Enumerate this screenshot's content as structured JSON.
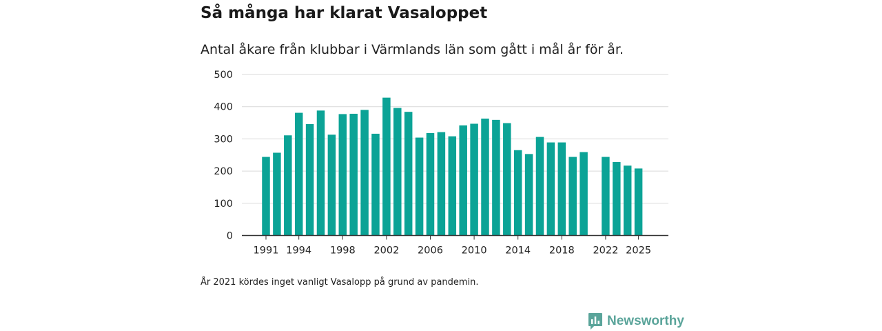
{
  "chart_data": {
    "type": "bar",
    "title": "Så många har klarat Vasaloppet",
    "subtitle": "Antal åkare från klubbar i Värmlands län som gått i mål år för år.",
    "xlabel": "",
    "ylabel": "",
    "ylim": [
      0,
      500
    ],
    "yticks": [
      0,
      100,
      200,
      300,
      400,
      500
    ],
    "xtick_labels": [
      "1991",
      "1994",
      "1998",
      "2002",
      "2006",
      "2010",
      "2014",
      "2018",
      "2022",
      "2025"
    ],
    "categories": [
      "1991",
      "1992",
      "1993",
      "1994",
      "1995",
      "1996",
      "1997",
      "1998",
      "1999",
      "2000",
      "2001",
      "2002",
      "2003",
      "2004",
      "2005",
      "2006",
      "2007",
      "2008",
      "2009",
      "2010",
      "2011",
      "2012",
      "2013",
      "2014",
      "2015",
      "2016",
      "2017",
      "2018",
      "2019",
      "2020",
      "2021",
      "2022",
      "2023",
      "2024",
      "2025"
    ],
    "values": [
      244,
      257,
      311,
      381,
      346,
      388,
      313,
      377,
      378,
      390,
      316,
      428,
      396,
      384,
      304,
      318,
      321,
      308,
      342,
      347,
      363,
      359,
      349,
      265,
      253,
      306,
      289,
      289,
      244,
      259,
      null,
      244,
      228,
      217,
      208
    ],
    "bar_color": "#0ba396",
    "grid": true,
    "legend": "none"
  },
  "footnote": "År 2021 kördes inget vanligt Vasalopp på grund av pandemin.",
  "brand": {
    "name": "Newsworthy",
    "icon": "newsworthy-logo-icon",
    "color": "#5aa49a"
  }
}
